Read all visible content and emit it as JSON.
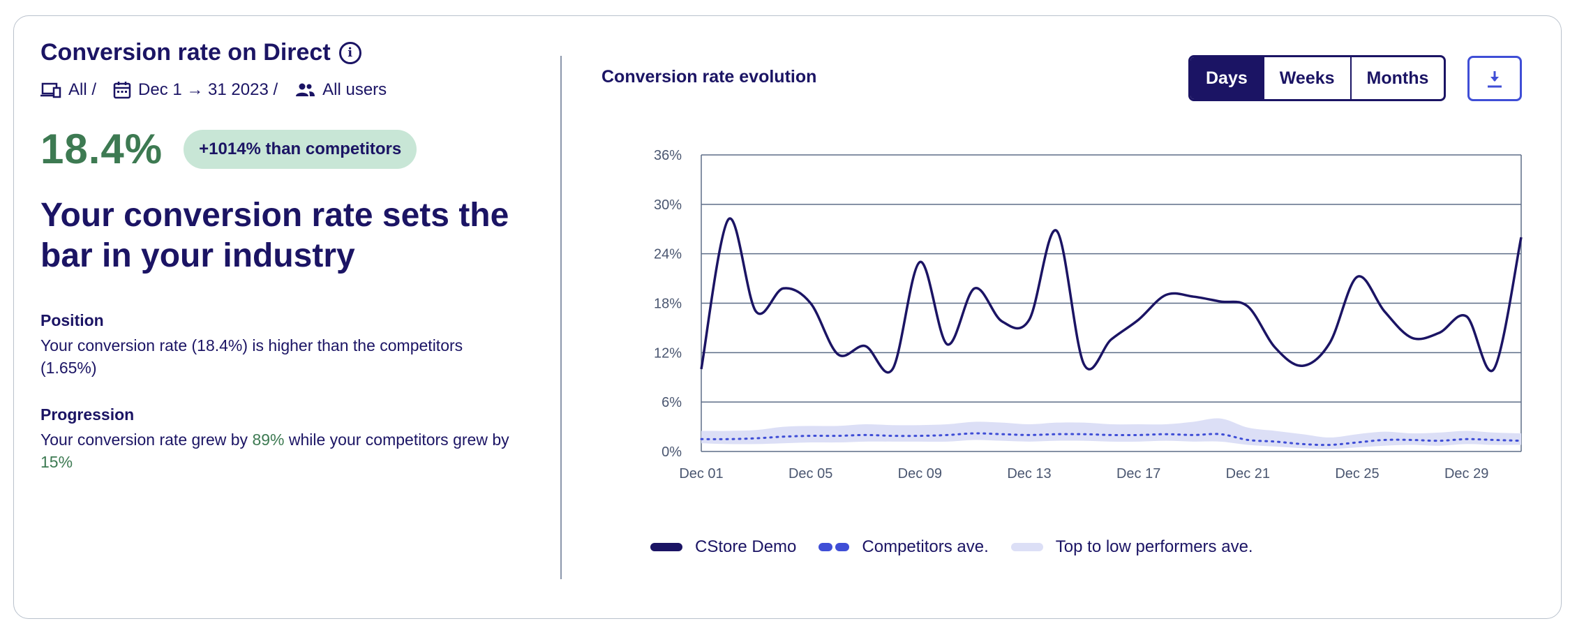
{
  "header": {
    "title": "Conversion rate on Direct",
    "filters": {
      "device": "All /",
      "date": "Dec 1 → 31 2023 /",
      "users": "All users"
    }
  },
  "kpi": {
    "value": "18.4%",
    "badge": "+1014% than competitors",
    "headline": "Your conversion rate sets the bar in your industry"
  },
  "position": {
    "title": "Position",
    "body": "Your conversion rate (18.4%) is higher than the competitors (1.65%)"
  },
  "progression": {
    "title": "Progression",
    "body_pre": "Your conversion rate grew by ",
    "value1": "89%",
    "body_mid": " while your competitors grew by ",
    "value2": "15%"
  },
  "chart_panel": {
    "title": "Conversion rate evolution",
    "granularity": {
      "days": "Days",
      "weeks": "Weeks",
      "months": "Months",
      "selected": "Days"
    }
  },
  "legend": {
    "store": "CStore Demo",
    "competitors": "Competitors ave.",
    "band": "Top to low performers ave."
  },
  "colors": {
    "store": "#1b1464",
    "competitors": "#3f4ed6",
    "band": "#dcdff6",
    "accent_green": "#3d7a52"
  },
  "chart_data": {
    "type": "line",
    "x": [
      "Dec 01",
      "Dec 02",
      "Dec 03",
      "Dec 04",
      "Dec 05",
      "Dec 06",
      "Dec 07",
      "Dec 08",
      "Dec 09",
      "Dec 10",
      "Dec 11",
      "Dec 12",
      "Dec 13",
      "Dec 14",
      "Dec 15",
      "Dec 16",
      "Dec 17",
      "Dec 18",
      "Dec 19",
      "Dec 20",
      "Dec 21",
      "Dec 22",
      "Dec 23",
      "Dec 24",
      "Dec 25",
      "Dec 26",
      "Dec 27",
      "Dec 28",
      "Dec 29",
      "Dec 30",
      "Dec 31"
    ],
    "xticks": [
      "Dec 01",
      "Dec 05",
      "Dec 09",
      "Dec 13",
      "Dec 17",
      "Dec 21",
      "Dec 25",
      "Dec 29"
    ],
    "yticks": [
      "0%",
      "6%",
      "12%",
      "18%",
      "24%",
      "30%",
      "36%"
    ],
    "ylim": [
      0,
      36
    ],
    "series": [
      {
        "name": "CStore Demo",
        "values": [
          10,
          28.2,
          17,
          19.8,
          18,
          11.8,
          12.8,
          10,
          23,
          13,
          19.8,
          15.8,
          16,
          26.8,
          10.6,
          13.6,
          16,
          19,
          18.8,
          18.2,
          17.6,
          12.6,
          10.4,
          13.2,
          21.2,
          17,
          13.8,
          14.4,
          16.4,
          10,
          26
        ]
      },
      {
        "name": "Competitors ave.",
        "values": [
          1.5,
          1.5,
          1.6,
          1.8,
          1.9,
          1.9,
          2.0,
          1.9,
          1.9,
          2.0,
          2.2,
          2.1,
          2.0,
          2.1,
          2.1,
          2.0,
          2.0,
          2.1,
          2.0,
          2.1,
          1.4,
          1.2,
          0.9,
          0.8,
          1.1,
          1.4,
          1.4,
          1.3,
          1.5,
          1.4,
          1.3
        ]
      },
      {
        "name": "Top to low performers ave.",
        "upper": [
          2.5,
          2.5,
          2.6,
          3.0,
          3.1,
          3.1,
          3.3,
          3.2,
          3.2,
          3.3,
          3.6,
          3.5,
          3.3,
          3.5,
          3.5,
          3.3,
          3.3,
          3.3,
          3.6,
          4.0,
          2.9,
          2.5,
          2.1,
          1.7,
          2.1,
          2.4,
          2.2,
          2.3,
          2.5,
          2.3,
          2.2
        ],
        "lower": [
          1.0,
          0.9,
          0.9,
          1.0,
          1.1,
          1.1,
          1.2,
          1.2,
          1.2,
          1.2,
          1.4,
          1.3,
          1.2,
          1.3,
          1.3,
          1.2,
          1.2,
          1.3,
          1.2,
          1.2,
          0.8,
          0.6,
          0.4,
          0.3,
          0.5,
          0.7,
          0.8,
          0.7,
          0.9,
          0.8,
          0.8
        ]
      }
    ],
    "grid": true
  }
}
